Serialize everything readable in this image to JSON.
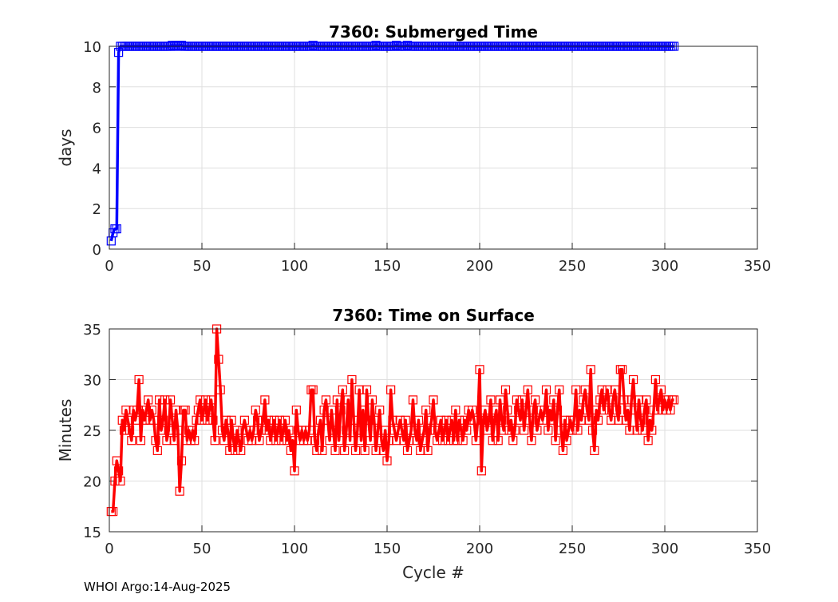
{
  "chart_data": [
    {
      "type": "line",
      "title": "7360: Submerged Time",
      "xlabel": "",
      "ylabel": "days",
      "xlim": [
        0,
        350
      ],
      "ylim": [
        0,
        10
      ],
      "xticks": [
        0,
        50,
        100,
        150,
        200,
        250,
        300,
        350
      ],
      "yticks": [
        0,
        2,
        4,
        6,
        8,
        10
      ],
      "grid": true,
      "marker": "square",
      "color": "#0000ff",
      "x_start": 1,
      "values": [
        0.4,
        0.8,
        1.0,
        1.0,
        9.7,
        10,
        10,
        10,
        10,
        10,
        10,
        10,
        10,
        10,
        10,
        10,
        10,
        10,
        10,
        10,
        10,
        10,
        10,
        10,
        10,
        10,
        10,
        10,
        10,
        10,
        10,
        10,
        10,
        10.05,
        10,
        10.05,
        10,
        10.05,
        10.05,
        10,
        10,
        10,
        10,
        10,
        10,
        10,
        10,
        10,
        10,
        10,
        10,
        10,
        10,
        10,
        10,
        10,
        10,
        10,
        10,
        10,
        10,
        10,
        10,
        10,
        10,
        10,
        10,
        10,
        10,
        10,
        10,
        10,
        10,
        10,
        10,
        10,
        10,
        10,
        10,
        10,
        10,
        10,
        10,
        10,
        10,
        10,
        10,
        10,
        10,
        10,
        10,
        10,
        10,
        10,
        10,
        10,
        10,
        10,
        10,
        10,
        10,
        10,
        10,
        10,
        10,
        10,
        10,
        10,
        10,
        10.05,
        10,
        10,
        10,
        10,
        10,
        10,
        10,
        10,
        10,
        10,
        10,
        10,
        10,
        10,
        10,
        10,
        10,
        10,
        10,
        10,
        10,
        10,
        10,
        10,
        10,
        10,
        10,
        10,
        10,
        10,
        10,
        10,
        10,
        10.05,
        10,
        10,
        10,
        10,
        10,
        10,
        10,
        10,
        10,
        10,
        10.05,
        10,
        10,
        10,
        10,
        10,
        10.05,
        10,
        10,
        10,
        10,
        10,
        10,
        10,
        10,
        10,
        10,
        10,
        10,
        10,
        10,
        10,
        10,
        10,
        10,
        10,
        10,
        10,
        10,
        10,
        10,
        10,
        10,
        10,
        10,
        10,
        10,
        10,
        10,
        10,
        10,
        10,
        10,
        10,
        10,
        10,
        10,
        10,
        10,
        10,
        10,
        10,
        10,
        10,
        10,
        10,
        10,
        10,
        10,
        10,
        10,
        10,
        10,
        10,
        10,
        10,
        10,
        10,
        10,
        10,
        10,
        10,
        10,
        10,
        10,
        10,
        10,
        10,
        10,
        10,
        10,
        10,
        10,
        10,
        10,
        10,
        10,
        10,
        10,
        10,
        10,
        10,
        10,
        10,
        10,
        10,
        10,
        10,
        10,
        10,
        10,
        10,
        10,
        10,
        10,
        10,
        10,
        10,
        10,
        10,
        10,
        10,
        10,
        10,
        10,
        10,
        10,
        10,
        10,
        10,
        10,
        10,
        10,
        10,
        10,
        10,
        10,
        10,
        10,
        10,
        10,
        10,
        10,
        10,
        10,
        10,
        10,
        10,
        10,
        10,
        10,
        10,
        10,
        10,
        10,
        10,
        10,
        10,
        10,
        10,
        10
      ]
    },
    {
      "type": "line",
      "title": "7360: Time on Surface",
      "xlabel": "Cycle #",
      "ylabel": "Minutes",
      "xlim": [
        0,
        350
      ],
      "ylim": [
        15,
        35
      ],
      "xticks": [
        0,
        50,
        100,
        150,
        200,
        250,
        300,
        350
      ],
      "yticks": [
        15,
        20,
        25,
        30,
        35
      ],
      "grid": true,
      "marker": "square",
      "color": "#ff0000",
      "x_start": 1,
      "values": [
        17,
        17,
        20,
        22,
        21,
        20,
        26,
        25,
        27,
        26,
        25,
        24,
        27,
        26,
        27,
        30,
        24,
        27,
        26,
        27,
        28,
        26,
        27,
        26,
        24,
        23,
        28,
        25,
        26,
        28,
        24,
        25,
        28,
        26,
        24,
        27,
        25,
        19,
        22,
        27,
        27,
        24,
        25,
        24,
        25,
        24,
        26,
        27,
        28,
        26,
        27,
        28,
        26,
        27,
        28,
        26,
        24,
        35,
        32,
        29,
        25,
        24,
        26,
        25,
        23,
        26,
        24,
        23,
        25,
        24,
        23,
        25,
        26,
        25,
        24,
        25,
        24,
        25,
        27,
        26,
        24,
        25,
        26,
        28,
        25,
        26,
        24,
        25,
        26,
        24,
        25,
        26,
        24,
        25,
        26,
        24,
        25,
        23,
        24,
        21,
        27,
        25,
        24,
        25,
        24,
        25,
        24,
        25,
        29,
        29,
        24,
        23,
        25,
        26,
        23,
        27,
        28,
        26,
        24,
        27,
        25,
        23,
        28,
        24,
        27,
        29,
        23,
        25,
        28,
        24,
        30,
        26,
        23,
        25,
        29,
        24,
        27,
        23,
        29,
        26,
        24,
        28,
        26,
        23,
        25,
        27,
        24,
        23,
        25,
        22,
        24,
        29,
        26,
        25,
        24,
        25,
        26,
        25,
        24,
        26,
        23,
        24,
        25,
        28,
        25,
        24,
        26,
        23,
        24,
        25,
        27,
        23,
        25,
        26,
        28,
        25,
        24,
        25,
        26,
        24,
        25,
        26,
        24,
        25,
        26,
        24,
        27,
        24,
        26,
        25,
        24,
        26,
        25,
        27,
        26,
        27,
        26,
        24,
        26,
        31,
        21,
        26,
        27,
        25,
        26,
        28,
        24,
        26,
        27,
        24,
        28,
        26,
        25,
        29,
        27,
        25,
        26,
        24,
        25,
        28,
        27,
        26,
        28,
        25,
        27,
        29,
        26,
        24,
        27,
        28,
        25,
        26,
        27,
        26,
        27,
        29,
        25,
        27,
        26,
        28,
        24,
        27,
        29,
        25,
        23,
        26,
        24,
        25,
        26,
        25,
        26,
        29,
        25,
        27,
        26,
        28,
        29,
        27,
        26,
        31,
        25,
        23,
        27,
        26,
        28,
        29,
        27,
        28,
        29,
        27,
        26,
        28,
        29,
        27,
        26,
        31,
        31,
        28,
        26,
        27,
        25,
        28,
        30,
        27,
        25,
        28,
        26,
        25,
        27,
        28,
        24,
        26,
        25,
        27,
        30,
        27,
        28,
        29,
        27,
        28,
        27,
        28,
        27,
        28,
        28
      ]
    }
  ],
  "footer": "WHOI Argo:14-Aug-2025"
}
